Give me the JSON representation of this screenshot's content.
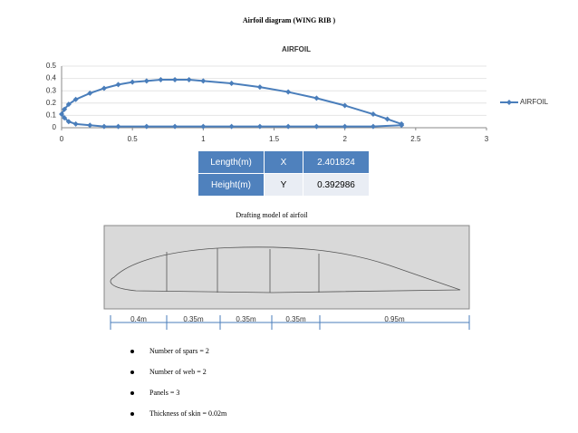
{
  "title": "Airfoil diagram (WING RIB )",
  "chart_data": {
    "type": "line",
    "title": "AIRFOIL",
    "x": [
      2.4,
      2.2,
      2.0,
      1.8,
      1.6,
      1.4,
      1.2,
      1.0,
      0.8,
      0.6,
      0.4,
      0.3,
      0.2,
      0.1,
      0.05,
      0.02,
      0,
      0.02,
      0.05,
      0.1,
      0.2,
      0.3,
      0.4,
      0.5,
      0.6,
      0.7,
      0.8,
      0.9,
      1.0,
      1.2,
      1.4,
      1.6,
      1.8,
      2.0,
      2.2,
      2.3,
      2.4
    ],
    "series": [
      {
        "name": "AIRFOIL",
        "color": "#4a7ebb",
        "values": [
          0.02,
          0.01,
          0.01,
          0.01,
          0.01,
          0.01,
          0.01,
          0.01,
          0.01,
          0.01,
          0.01,
          0.01,
          0.02,
          0.03,
          0.05,
          0.08,
          0.11,
          0.15,
          0.19,
          0.23,
          0.28,
          0.32,
          0.35,
          0.37,
          0.38,
          0.39,
          0.39,
          0.39,
          0.38,
          0.36,
          0.33,
          0.29,
          0.24,
          0.18,
          0.11,
          0.07,
          0.03
        ]
      }
    ],
    "xlim": [
      0,
      3
    ],
    "xticks": [
      0,
      0.5,
      1,
      1.5,
      2,
      2.5,
      3
    ],
    "ylim": [
      0,
      0.5
    ],
    "yticks": [
      0,
      0.1,
      0.2,
      0.3,
      0.4,
      0.5
    ],
    "grid": true,
    "legend": "right"
  },
  "table": {
    "rows": [
      [
        "Length(m)",
        "X",
        "2.401824"
      ],
      [
        "Height(m)",
        "Y",
        "0.392986"
      ]
    ]
  },
  "drafting": {
    "title": "Drafting model of airfoil",
    "dimensions": [
      "0.4m",
      "0.35m",
      "0.35m",
      "0.35m",
      "0.95m"
    ]
  },
  "bullets": [
    "Number of spars = 2",
    "Number of web = 2",
    "Panels = 3",
    "Thickness of skin = 0.02m"
  ]
}
